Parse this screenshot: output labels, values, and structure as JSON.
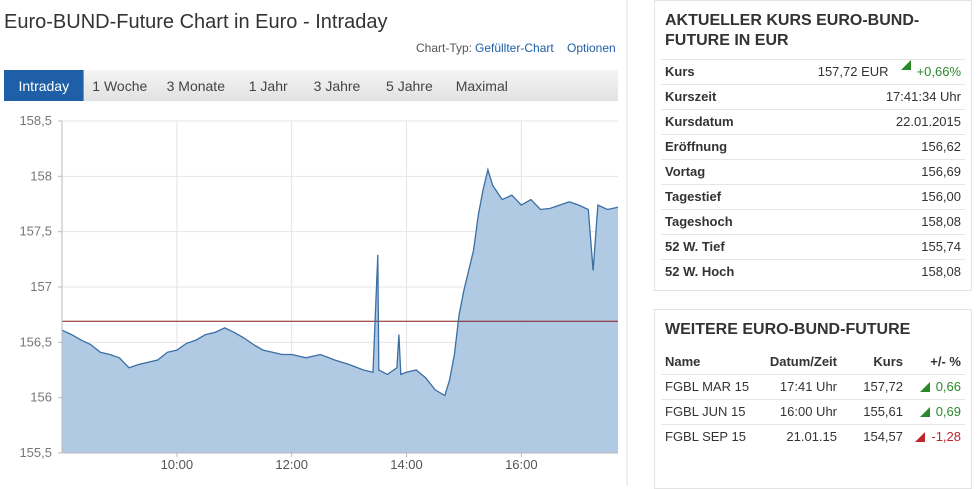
{
  "header": {
    "title": "Euro-BUND-Future Chart in Euro - Intraday",
    "chart_type_label": "Chart-Typ:",
    "chart_type": "Gefüllter-Chart",
    "options": "Optionen"
  },
  "tabs": [
    "Intraday",
    "1 Woche",
    "3 Monate",
    "1 Jahr",
    "3 Jahre",
    "5 Jahre",
    "Maximal"
  ],
  "active_tab": 0,
  "chart_data": {
    "type": "area",
    "x": [
      "08:00",
      "08:10",
      "08:20",
      "08:30",
      "08:40",
      "08:50",
      "09:00",
      "09:10",
      "09:20",
      "09:30",
      "09:40",
      "09:50",
      "10:00",
      "10:10",
      "10:20",
      "10:30",
      "10:40",
      "10:50",
      "11:00",
      "11:10",
      "11:20",
      "11:30",
      "11:40",
      "11:50",
      "12:00",
      "12:15",
      "12:30",
      "12:45",
      "13:00",
      "13:15",
      "13:25",
      "13:30",
      "13:31",
      "13:40",
      "13:50",
      "13:52",
      "13:54",
      "14:00",
      "14:10",
      "14:20",
      "14:30",
      "14:40",
      "14:45",
      "14:50",
      "14:55",
      "15:00",
      "15:05",
      "15:10",
      "15:15",
      "15:20",
      "15:25",
      "15:30",
      "15:40",
      "15:50",
      "16:00",
      "16:10",
      "16:20",
      "16:30",
      "16:40",
      "16:50",
      "17:00",
      "17:10",
      "17:15",
      "17:20",
      "17:30",
      "17:41"
    ],
    "values": [
      156.61,
      156.57,
      156.52,
      156.48,
      156.41,
      156.39,
      156.36,
      156.27,
      156.3,
      156.32,
      156.34,
      156.41,
      156.43,
      156.49,
      156.52,
      156.57,
      156.59,
      156.63,
      156.59,
      156.54,
      156.48,
      156.43,
      156.41,
      156.39,
      156.39,
      156.36,
      156.39,
      156.34,
      156.3,
      156.25,
      156.23,
      157.29,
      156.25,
      156.21,
      156.27,
      156.57,
      156.21,
      156.23,
      156.25,
      156.18,
      156.07,
      156.02,
      156.16,
      156.39,
      156.75,
      156.97,
      157.15,
      157.33,
      157.65,
      157.88,
      158.06,
      157.92,
      157.79,
      157.83,
      157.74,
      157.79,
      157.7,
      157.71,
      157.74,
      157.77,
      157.74,
      157.7,
      157.15,
      157.74,
      157.7,
      157.72
    ],
    "color": "#3a6ea5",
    "fill": "#a8c4e0",
    "xlim": [
      "08:00",
      "17:41"
    ],
    "xticks": [
      "10:00",
      "12:00",
      "14:00",
      "16:00"
    ],
    "ylim": [
      155.5,
      158.5
    ],
    "yticks": [
      {
        "value": 155.5,
        "label": "155,5"
      },
      156,
      {
        "value": 156.5,
        "label": "156,5"
      },
      157,
      {
        "value": 157.5,
        "label": "157,5"
      },
      158,
      {
        "value": 158.5,
        "label": "158,5"
      }
    ],
    "reference_line": {
      "value": 156.69,
      "color": "#8b1a1a"
    },
    "grid": true
  },
  "quote": {
    "title": "AKTUELLER KURS EURO-BUND-FUTURE IN EUR",
    "rows": [
      {
        "label": "Kurs",
        "value": "157,72 EUR",
        "change": "+0,66%",
        "color": "#2a8a2a"
      },
      {
        "label": "Kurszeit",
        "value": "17:41:34 Uhr"
      },
      {
        "label": "Kursdatum",
        "value": "22.01.2015"
      },
      {
        "label": "Eröffnung",
        "value": "156,62"
      },
      {
        "label": "Vortag",
        "value": "156,69"
      },
      {
        "label": "Tagestief",
        "value": "156,00"
      },
      {
        "label": "Tageshoch",
        "value": "158,08"
      },
      {
        "label": "52 W. Tief",
        "value": "155,74"
      },
      {
        "label": "52 W. Hoch",
        "value": "158,08"
      }
    ]
  },
  "futures": {
    "title": "WEITERE EURO-BUND-FUTURE",
    "columns": [
      "Name",
      "Datum/Zeit",
      "Kurs",
      "+/- %"
    ],
    "rows": [
      {
        "name": "FGBL MAR 15",
        "time": "17:41 Uhr",
        "price": "157,72",
        "change": "0,66",
        "color": "#2a8a2a"
      },
      {
        "name": "FGBL JUN 15",
        "time": "16:00 Uhr",
        "price": "155,61",
        "change": "0,69",
        "color": "#2a8a2a"
      },
      {
        "name": "FGBL SEP 15",
        "time": "21.01.15",
        "price": "154,57",
        "change": "-1,28",
        "color": "#c0262d"
      }
    ]
  }
}
